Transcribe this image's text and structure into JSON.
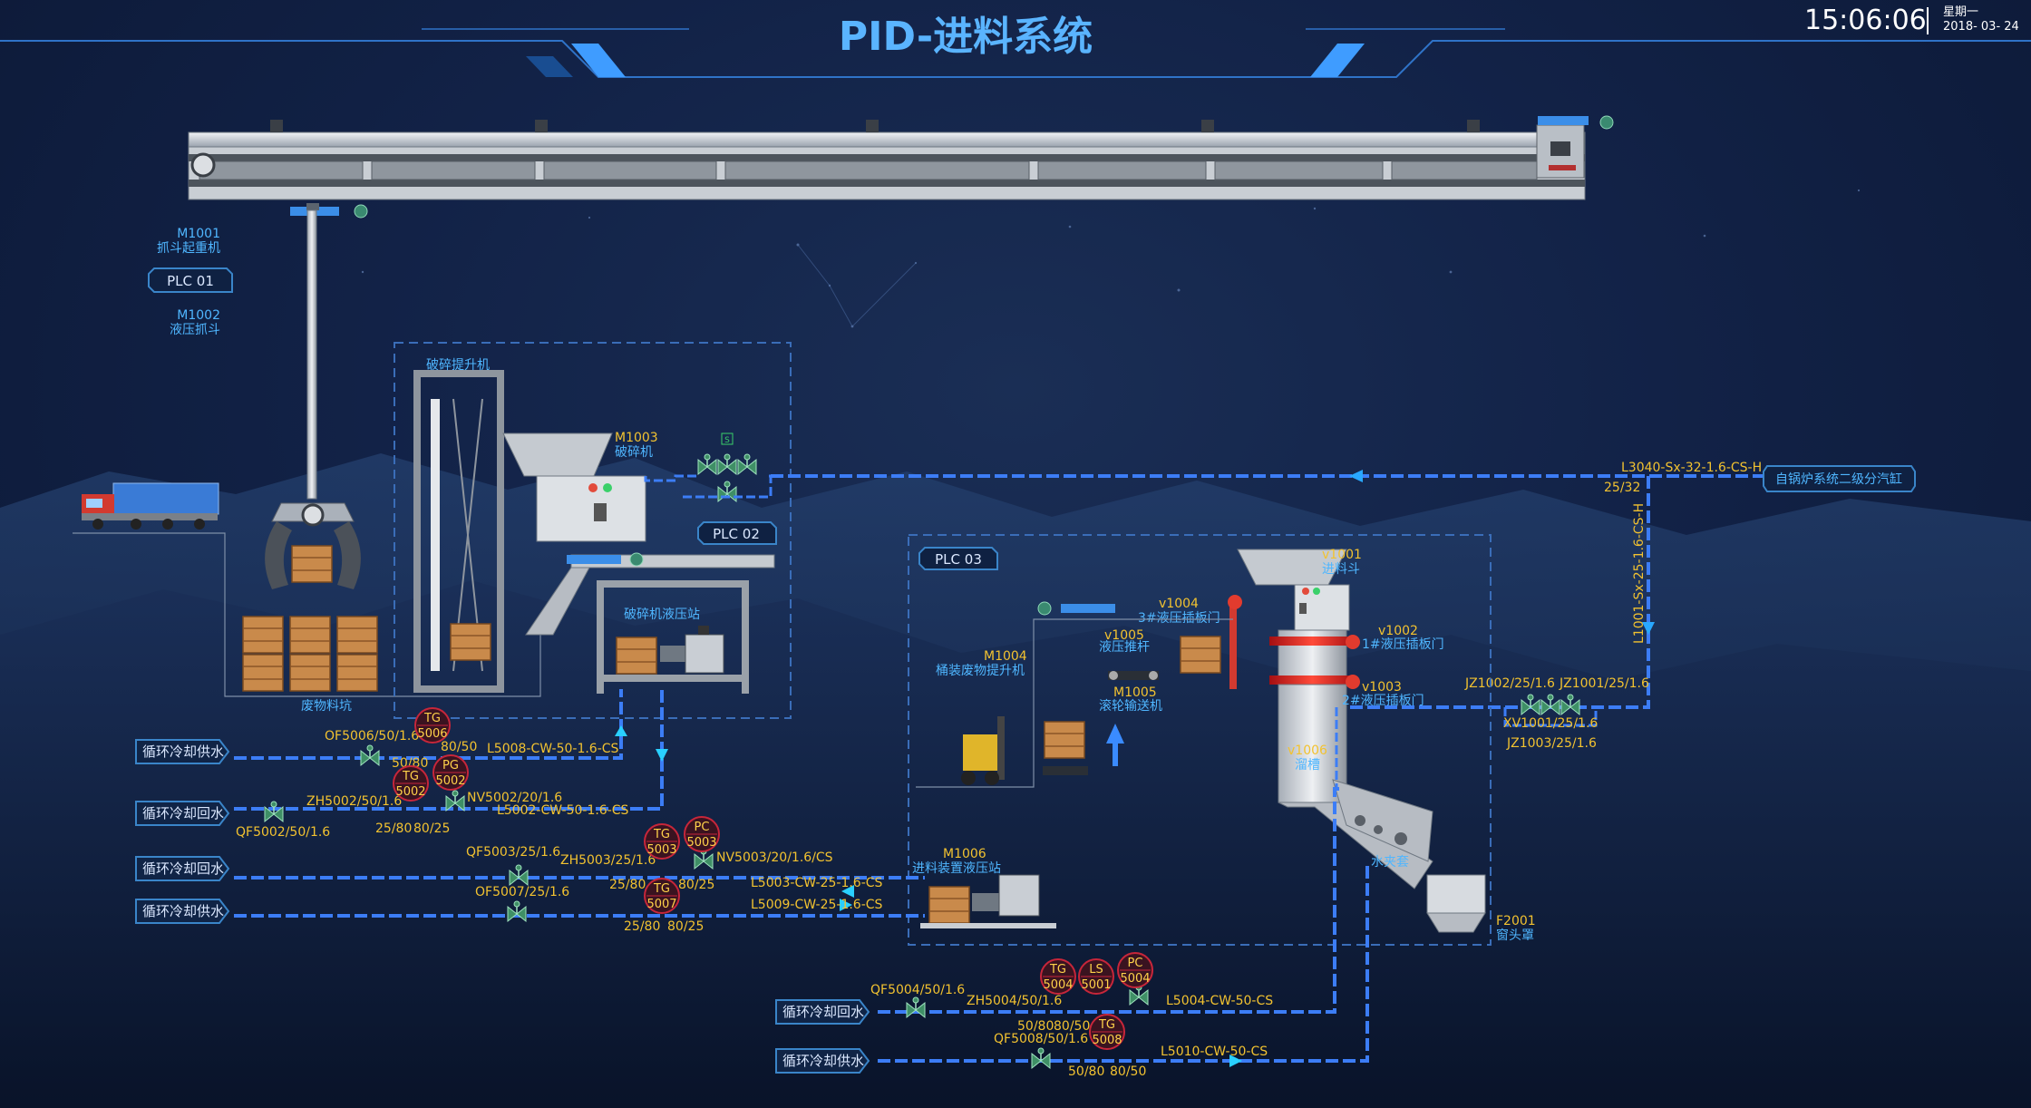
{
  "header": {
    "title": "PID-进料系统",
    "time": "15:06:06",
    "weekday": "星期一",
    "date": "2018- 03- 24"
  },
  "equipment": {
    "m1001_code": "M1001",
    "m1001_name": "抓斗起重机",
    "plc01": "PLC  01",
    "m1002_code": "M1002",
    "m1002_name": "液压抓斗",
    "crusher_lift": "破碎提升机",
    "m1003_code": "M1003",
    "m1003_name": "破碎机",
    "plc02": "PLC  02",
    "crusher_hyd_station": "破碎机液压站",
    "waste_pit": "废物料坑",
    "plc03": "PLC  03",
    "v1001_code": "v1001",
    "v1001_name": "进料斗",
    "v1004_code": "v1004",
    "v1004_name": "3#液压插板门",
    "v1005_code": "v1005",
    "v1005_name": "液压推杆",
    "v1002_code": "v1002",
    "v1002_name": "1#液压插板门",
    "v1003_code": "v1003",
    "v1003_name": "2#液压插板门",
    "m1004_code": "M1004",
    "m1004_name": "桶装废物提升机",
    "m1005_code": "M1005",
    "m1005_name": "滚轮输送机",
    "v1006_code": "v1006",
    "v1006_name": "溜槽",
    "water_jacket": "水夹套",
    "m1006_code": "M1006",
    "m1006_name": "进料装置液压站",
    "f2001_code": "F2001",
    "f2001_name": "窗头罩",
    "s_mark": "S"
  },
  "pipes": {
    "l3040": "L3040-Sx-32-1.6-CS-H",
    "l3040_size": "25/32",
    "boiler_tag": "自锅炉系统二级分汽缸",
    "l1001": "L1001-Sx-25-1.6-CS-H",
    "jz1002": "JZ1002/25/1.6",
    "jz1001": "JZ1001/25/1.6",
    "xv1001": "XV1001/25/1.6",
    "jz1003": "JZ1003/25/1.6",
    "l5008": "L5008-CW-50-1.6-CS",
    "l5002": "L5002-CW-50-1.6-CS",
    "l5003": "L5003-CW-25-1.6-CS",
    "l5009": "L5009-CW-25-1.6-CS",
    "l5004": "L5004-CW-50-CS",
    "l5010": "L5010-CW-50-CS"
  },
  "tags": {
    "supply1": "循环冷却供水",
    "return1": "循环冷却回水",
    "return2": "循环冷却回水",
    "supply2": "循环冷却供水",
    "return3": "循环冷却回水",
    "supply3": "循环冷却供水"
  },
  "valves": {
    "of5006": "OF5006/50/1.6",
    "zh5002": "ZH5002/50/1.6",
    "qf5002": "QF5002/50/1.6",
    "nv5002": "NV5002/20/1.6",
    "qf5003": "QF5003/25/1.6",
    "zh5003": "ZH5003/25/1.6",
    "of5007": "OF5007/25/1.6",
    "nv5003": "NV5003/20/1.6/CS",
    "qf5004": "QF5004/50/1.6",
    "zh5004": "ZH5004/50/1.6",
    "qf5008": "QF5008/50/1.6"
  },
  "sizes": {
    "s_50_80_a": "50/80",
    "s_80_50_a": "80/50",
    "s_25_80": "25/80",
    "s_80_25": "80/25",
    "s_25_80_b": "25/80",
    "s_80_25_b": "80/25",
    "s_25_80_c": "25/80",
    "s_80_25_c": "80/25",
    "s_50_80_b": "50/80",
    "s_80_50_b": "80/50",
    "s_50_80_c": "50/80",
    "s_80_50_c": "80/50"
  },
  "instruments": [
    {
      "type": "TG",
      "num": "5006"
    },
    {
      "type": "TG",
      "num": "5002"
    },
    {
      "type": "PG",
      "num": "5002"
    },
    {
      "type": "TG",
      "num": "5003"
    },
    {
      "type": "PC",
      "num": "5003"
    },
    {
      "type": "TG",
      "num": "5007"
    },
    {
      "type": "TG",
      "num": "5004"
    },
    {
      "type": "LS",
      "num": "5001"
    },
    {
      "type": "PC",
      "num": "5004"
    },
    {
      "type": "TG",
      "num": "5008"
    }
  ]
}
